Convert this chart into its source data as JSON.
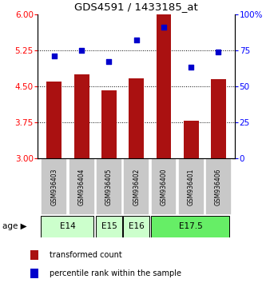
{
  "title": "GDS4591 / 1433185_at",
  "samples": [
    "GSM936403",
    "GSM936404",
    "GSM936405",
    "GSM936402",
    "GSM936400",
    "GSM936401",
    "GSM936406"
  ],
  "transformed_counts": [
    4.6,
    4.75,
    4.42,
    4.67,
    6.0,
    3.78,
    4.65
  ],
  "percentile_ranks": [
    71,
    75,
    67,
    82,
    91,
    63,
    74
  ],
  "ylim_left": [
    3,
    6
  ],
  "ylim_right": [
    0,
    100
  ],
  "yticks_left": [
    3,
    3.75,
    4.5,
    5.25,
    6
  ],
  "yticks_right": [
    0,
    25,
    50,
    75,
    100
  ],
  "ytick_labels_right": [
    "0",
    "25",
    "50",
    "75",
    "100%"
  ],
  "bar_color": "#aa1111",
  "dot_color": "#0000cc",
  "bar_width": 0.55,
  "age_groups_data": [
    {
      "label": "E14",
      "start": 0,
      "end": 1,
      "color": "#ccffcc"
    },
    {
      "label": "E15",
      "start": 2,
      "end": 2,
      "color": "#ccffcc"
    },
    {
      "label": "E16",
      "start": 3,
      "end": 3,
      "color": "#ccffcc"
    },
    {
      "label": "E17.5",
      "start": 4,
      "end": 6,
      "color": "#66ee66"
    }
  ],
  "sample_bg": "#c8c8c8",
  "sample_border": "#ffffff",
  "legend_red": "#aa1111",
  "legend_blue": "#0000cc",
  "legend_label1": "transformed count",
  "legend_label2": "percentile rank within the sample"
}
